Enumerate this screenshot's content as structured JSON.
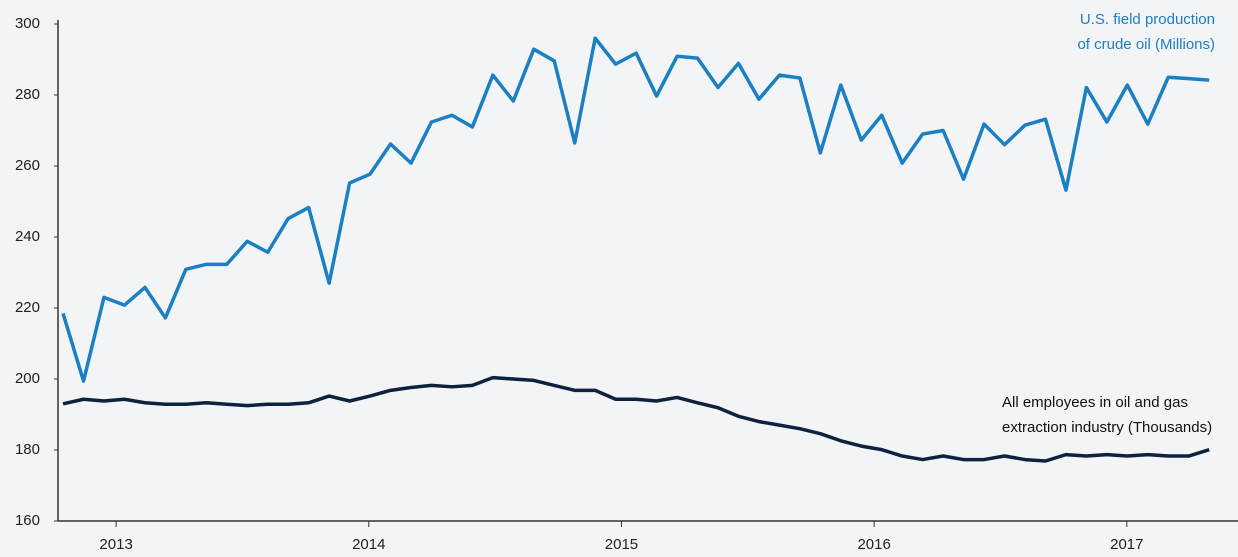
{
  "chart_data": {
    "type": "line",
    "x": [
      2012.79,
      2012.871,
      2012.952,
      2013.033,
      2013.114,
      2013.195,
      2013.276,
      2013.357,
      2013.438,
      2013.519,
      2013.6,
      2013.681,
      2013.762,
      2013.843,
      2013.924,
      2014.005,
      2014.086,
      2014.167,
      2014.248,
      2014.329,
      2014.41,
      2014.491,
      2014.572,
      2014.653,
      2014.734,
      2014.815,
      2014.896,
      2014.977,
      2015.058,
      2015.139,
      2015.22,
      2015.301,
      2015.382,
      2015.463,
      2015.544,
      2015.625,
      2015.706,
      2015.787,
      2015.868,
      2015.949,
      2016.03,
      2016.111,
      2016.192,
      2016.273,
      2016.354,
      2016.435,
      2016.516,
      2016.597,
      2016.678,
      2016.759,
      2016.84,
      2016.921,
      2017.002,
      2017.083,
      2017.164,
      2017.245,
      2017.326
    ],
    "series": [
      {
        "name": [
          "U.S. field production",
          "of crude oil (Millions)"
        ],
        "color": "#1b7fc3",
        "values": [
          218.5,
          199.4,
          223,
          220.8,
          225.8,
          217.2,
          230.9,
          232.3,
          232.3,
          238.8,
          235.7,
          245.2,
          248.3,
          227,
          255.2,
          257.7,
          266.2,
          260.8,
          272.4,
          274.3,
          271,
          285.6,
          278.3,
          292.9,
          289.6,
          266.5,
          296,
          288.7,
          291.8,
          279.7,
          290.9,
          290.4,
          282.1,
          288.9,
          278.8,
          285.6,
          284.8,
          263.7,
          282.8,
          267.3,
          274.3,
          260.8,
          269,
          270,
          256.3,
          271.8,
          266,
          271.5,
          273.2,
          253.2,
          282.1,
          272.4,
          282.8,
          271.8,
          285,
          284.6,
          284.2
        ]
      },
      {
        "name": [
          "All employees in oil and gas",
          "extraction industry (Thousands)"
        ],
        "color": "#0c2240",
        "values": [
          193,
          194.3,
          193.8,
          194.3,
          193.3,
          192.9,
          192.9,
          193.3,
          192.9,
          192.5,
          192.9,
          192.9,
          193.3,
          195.2,
          193.8,
          195.2,
          196.8,
          197.6,
          198.2,
          197.8,
          198.2,
          200.4,
          200,
          199.6,
          198.2,
          196.8,
          196.8,
          194.3,
          194.3,
          193.8,
          194.8,
          193.3,
          191.9,
          189.5,
          188,
          187,
          186,
          184.6,
          182.6,
          181.1,
          180.1,
          178.3,
          177.3,
          178.3,
          177.3,
          177.3,
          178.3,
          177.3,
          176.9,
          178.7,
          178.3,
          178.7,
          178.3,
          178.7,
          178.3,
          178.3,
          180.1
        ]
      }
    ],
    "xlim": [
      2012.77,
      2017.44
    ],
    "xticks": [
      2013,
      2014,
      2015,
      2016,
      2017
    ],
    "ylim": [
      160,
      300
    ],
    "yticks": [
      160,
      180,
      200,
      220,
      240,
      260,
      280,
      300
    ],
    "grid": false
  }
}
